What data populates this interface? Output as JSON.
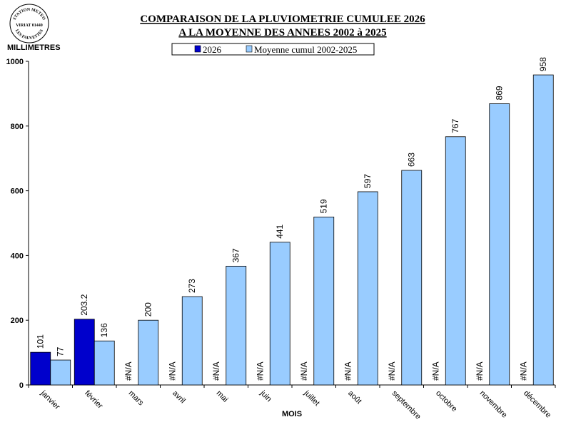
{
  "stamp": {
    "line1": "STATION METEO",
    "line2": "VIRIAT 01440",
    "line3": "LES FAUVETTES"
  },
  "chart_data": {
    "type": "bar",
    "title": "COMPARAISON DE LA PLUVIOMETRIE CUMULEE 2026",
    "subtitle": "A LA MOYENNE DES ANNEES 2002 à 2025",
    "ylabel": "MILLIMETRES",
    "xlabel": "MOIS",
    "ylim": [
      0,
      1000
    ],
    "yticks": [
      "0",
      "200",
      "400",
      "600",
      "800",
      "1000"
    ],
    "ytick_values": [
      0,
      200,
      400,
      600,
      800,
      1000
    ],
    "categories": [
      "janvier",
      "février",
      "mars",
      "avril",
      "mai",
      "juin",
      "juillet",
      "août",
      "septembre",
      "octobre",
      "novembre",
      "décembre"
    ],
    "series": [
      {
        "name": "2026",
        "color": "#0000cc",
        "values": [
          101,
          203.2,
          null,
          null,
          null,
          null,
          null,
          null,
          null,
          null,
          null,
          null
        ],
        "labels": [
          "101",
          "203.2",
          "#N/A",
          "#N/A",
          "#N/A",
          "#N/A",
          "#N/A",
          "#N/A",
          "#N/A",
          "#N/A",
          "#N/A",
          "#N/A"
        ]
      },
      {
        "name": "Moyenne cumul 2002-2025",
        "color": "#99ccff",
        "values": [
          77,
          136,
          200,
          273,
          367,
          441,
          519,
          597,
          663,
          767,
          869,
          958
        ],
        "labels": [
          "77",
          "136",
          "200",
          "273",
          "367",
          "441",
          "519",
          "597",
          "663",
          "767",
          "869",
          "958"
        ]
      }
    ],
    "legend_position": "top-center"
  }
}
